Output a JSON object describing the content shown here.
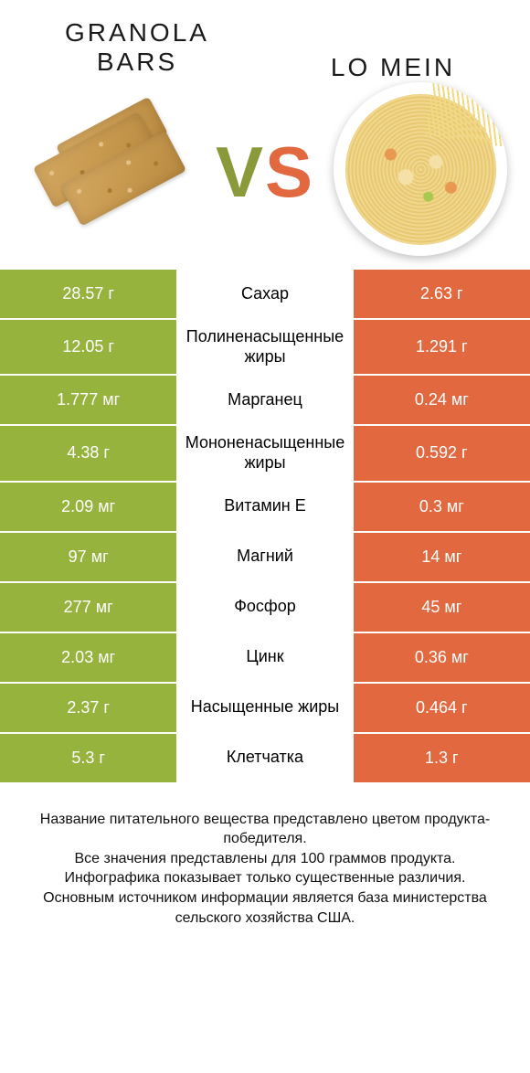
{
  "header": {
    "left_title": "GRANOLA BARS",
    "right_title": "LO MEIN",
    "vs_v": "V",
    "vs_s": "S"
  },
  "colors": {
    "green": "#96b33e",
    "orange": "#e2683f",
    "green_text": "#6f8a2a",
    "orange_text": "#d55a36",
    "background": "#ffffff"
  },
  "table": {
    "rows": [
      {
        "left": "28.57 г",
        "label": "Сахар",
        "right": "2.63 г",
        "label_color": "orange"
      },
      {
        "left": "12.05 г",
        "label": "Полиненасыщенные жиры",
        "right": "1.291 г",
        "label_color": "green"
      },
      {
        "left": "1.777 мг",
        "label": "Марганец",
        "right": "0.24 мг",
        "label_color": "green"
      },
      {
        "left": "4.38 г",
        "label": "Мононенасыщенные жиры",
        "right": "0.592 г",
        "label_color": "green"
      },
      {
        "left": "2.09 мг",
        "label": "Витамин E",
        "right": "0.3 мг",
        "label_color": "green"
      },
      {
        "left": "97 мг",
        "label": "Магний",
        "right": "14 мг",
        "label_color": "green"
      },
      {
        "left": "277 мг",
        "label": "Фосфор",
        "right": "45 мг",
        "label_color": "green"
      },
      {
        "left": "2.03 мг",
        "label": "Цинк",
        "right": "0.36 мг",
        "label_color": "green"
      },
      {
        "left": "2.37 г",
        "label": "Насыщенные жиры",
        "right": "0.464 г",
        "label_color": "orange"
      },
      {
        "left": "5.3 г",
        "label": "Клетчатка",
        "right": "1.3 г",
        "label_color": "green"
      }
    ],
    "left_bg": "green",
    "right_bg": "orange"
  },
  "footnote": {
    "line1": "Название питательного вещества представлено цветом продукта-победителя.",
    "line2": "Все значения представлены для 100 граммов продукта.",
    "line3": "Инфографика показывает только существенные различия.",
    "line4": "Основным источником информации является база министерства сельского хозяйства США."
  }
}
